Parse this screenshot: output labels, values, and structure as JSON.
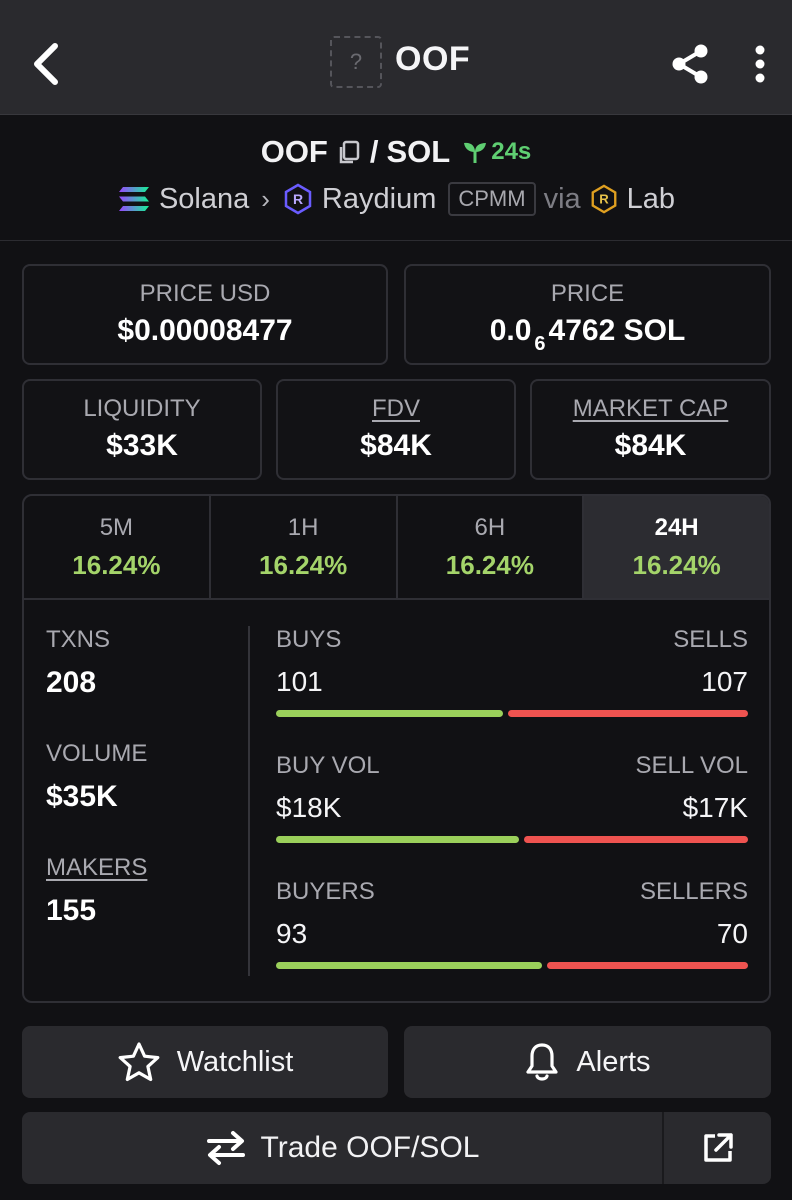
{
  "header": {
    "title": "OOF",
    "thumb_placeholder": "?"
  },
  "pair": {
    "base": "OOF",
    "slash": "/",
    "quote": "SOL",
    "age": "24s",
    "chain": "Solana",
    "dex": "Raydium",
    "pool_type": "CPMM",
    "via": "via",
    "source": "Lab"
  },
  "prices": {
    "price_usd_label": "PRICE USD",
    "price_usd": "$0.00008477",
    "price_label": "PRICE",
    "price_prefix": "0.0",
    "price_zeros": "6",
    "price_suffix": "4762 SOL"
  },
  "metrics": {
    "liquidity_label": "LIQUIDITY",
    "liquidity": "$33K",
    "fdv_label": "FDV",
    "fdv": "$84K",
    "mcap_label": "MARKET CAP",
    "mcap": "$84K"
  },
  "timeframes": [
    {
      "label": "5M",
      "change": "16.24%"
    },
    {
      "label": "1H",
      "change": "16.24%"
    },
    {
      "label": "6H",
      "change": "16.24%"
    },
    {
      "label": "24H",
      "change": "16.24%",
      "active": true
    }
  ],
  "stats": {
    "txns_label": "TXNS",
    "txns": "208",
    "volume_label": "VOLUME",
    "volume": "$35K",
    "makers_label": "MAKERS",
    "makers": "155"
  },
  "splits": {
    "buys_label": "BUYS",
    "sells_label": "SELLS",
    "buys": "101",
    "sells": "107",
    "buyvol_label": "BUY VOL",
    "sellvol_label": "SELL VOL",
    "buyvol": "$18K",
    "sellvol": "$17K",
    "buyers_label": "BUYERS",
    "sellers_label": "SELLERS",
    "buyers": "93",
    "sellers": "70",
    "buys_ratio": 0.486,
    "buyvol_ratio": 0.52,
    "buyers_ratio": 0.57
  },
  "actions": {
    "watchlist": "Watchlist",
    "alerts": "Alerts",
    "trade": "Trade OOF/SOL"
  },
  "colors": {
    "positive": "#a4d46a",
    "buy_bar": "#9bd05b",
    "sell_bar": "#ef5350",
    "age_green": "#5fcf72"
  },
  "icons": [
    "back-arrow-icon",
    "share-icon",
    "more-vertical-icon",
    "copy-icon",
    "sprout-icon",
    "solana-icon",
    "raydium-icon",
    "lab-icon",
    "star-icon",
    "bell-icon",
    "swap-arrows-icon",
    "external-link-icon"
  ]
}
